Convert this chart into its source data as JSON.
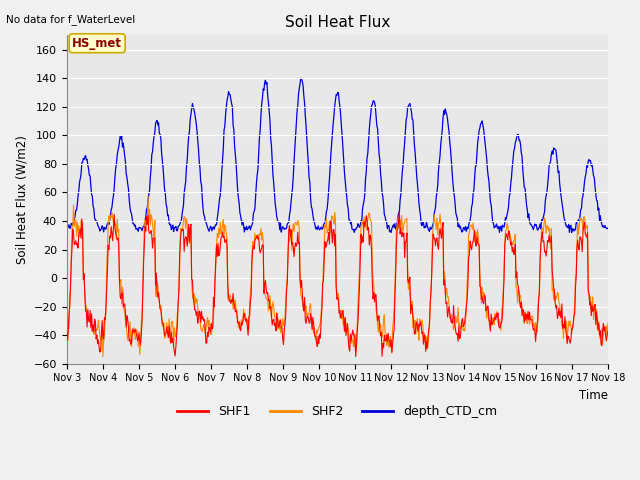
{
  "title": "Soil Heat Flux",
  "ylabel": "Soil Heat Flux (W/m2)",
  "xlabel": "Time",
  "top_left_text": "No data for f_WaterLevel",
  "inner_label": "HS_met",
  "color_shf1": "#ff0000",
  "color_shf2": "#ff8800",
  "color_depth": "#0000dd",
  "background_color": "#e8e8e8",
  "plot_bg_color": "#e8e8e8",
  "grid_color": "#ffffff",
  "ylim": [
    -60,
    170
  ],
  "xlim": [
    3,
    18
  ],
  "yticks": [
    -60,
    -40,
    -20,
    0,
    20,
    40,
    60,
    80,
    100,
    120,
    140,
    160
  ]
}
